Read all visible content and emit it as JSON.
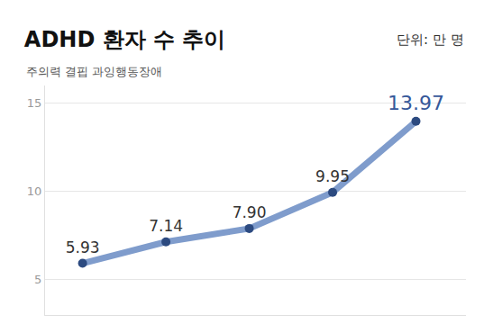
{
  "chart_data": {
    "type": "line",
    "title": "ADHD 환자 수 추이",
    "subtitle": "주의력 결핍 과잉행동장애",
    "y_label": "단위: 만 명",
    "categories": [
      null,
      null,
      null,
      null,
      null
    ],
    "values": [
      5.93,
      7.14,
      7.9,
      9.95,
      13.97
    ],
    "value_labels": [
      "5.93",
      "7.14",
      "7.90",
      "9.95",
      "13.97"
    ],
    "color": "#7f9ccc",
    "marker": "circle",
    "ylim": [
      3,
      16
    ],
    "yticks": [
      5,
      10,
      15
    ],
    "grid": true,
    "data_labels": true,
    "tick_labels": "y"
  }
}
